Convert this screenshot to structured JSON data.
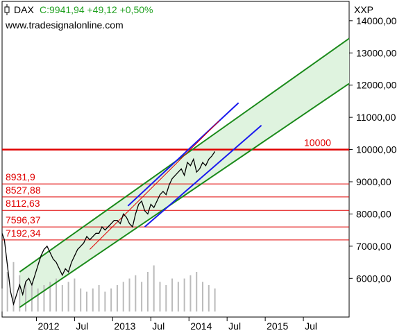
{
  "header": {
    "symbol": "DAX",
    "quote": "C:9941,94 +49,12 +0,50%",
    "website": "www.tradesignalonline.com",
    "exchange_code": "XXP"
  },
  "colors": {
    "price": "#000000",
    "channel_green": "#1a8a1a",
    "channel_fill": "#dff3df",
    "channel_blue": "#1a1aee",
    "level_red": "#e00000",
    "volume": "#bbbbbb",
    "header_green": "#1fa01f"
  },
  "chart_data": {
    "type": "line",
    "title": "DAX",
    "x_tick_labels": [
      "2012",
      "Jul",
      "2013",
      "Jul",
      "2014",
      "Jul",
      "2015",
      "Jul"
    ],
    "x_ticks": [
      2012.0,
      2012.5,
      2013.0,
      2013.5,
      2014.0,
      2014.5,
      2015.0,
      2015.5
    ],
    "xlim": [
      2011.55,
      2016.1
    ],
    "y_tick_labels": [
      "6000,00",
      "7000,00",
      "8000,00",
      "9000,00",
      "10000,00",
      "11000,00",
      "12000,00",
      "13000,00",
      "14000,00"
    ],
    "y_ticks": [
      6000,
      7000,
      8000,
      9000,
      10000,
      11000,
      12000,
      13000,
      14000
    ],
    "ylim": [
      4800,
      14600
    ],
    "grid": false,
    "series": [
      {
        "type": "line",
        "x": [
          2011.55,
          2011.58,
          2011.62,
          2011.66,
          2011.7,
          2011.74,
          2011.78,
          2011.82,
          2011.86,
          2011.9,
          2011.94,
          2011.98,
          2012.02,
          2012.06,
          2012.1,
          2012.14,
          2012.18,
          2012.22,
          2012.26,
          2012.3,
          2012.34,
          2012.38,
          2012.42,
          2012.46,
          2012.5,
          2012.54,
          2012.58,
          2012.62,
          2012.66,
          2012.7,
          2012.74,
          2012.78,
          2012.82,
          2012.86,
          2012.9,
          2012.94,
          2012.98,
          2013.02,
          2013.06,
          2013.1,
          2013.14,
          2013.18,
          2013.22,
          2013.26,
          2013.3,
          2013.34,
          2013.38,
          2013.42,
          2013.46,
          2013.5,
          2013.54,
          2013.58,
          2013.62,
          2013.66,
          2013.7,
          2013.74,
          2013.78,
          2013.82,
          2013.86,
          2013.9,
          2013.94,
          2013.98,
          2014.02,
          2014.06,
          2014.1,
          2014.14,
          2014.18,
          2014.22,
          2014.26,
          2014.3,
          2014.34
        ],
        "y": [
          7400,
          7200,
          6400,
          5600,
          5200,
          5500,
          5800,
          5500,
          5900,
          6000,
          5800,
          6100,
          6400,
          6700,
          6900,
          7000,
          6800,
          6600,
          6500,
          6300,
          6100,
          6300,
          6200,
          6500,
          6700,
          6900,
          7000,
          7100,
          7300,
          7200,
          7300,
          7400,
          7400,
          7600,
          7500,
          7600,
          7700,
          7800,
          7800,
          7700,
          8000,
          7900,
          7700,
          7600,
          8000,
          8300,
          8400,
          8100,
          8000,
          8300,
          8200,
          8400,
          8600,
          8700,
          8600,
          8900,
          9100,
          9200,
          9300,
          9400,
          9200,
          9600,
          9500,
          9700,
          9300,
          9400,
          9600,
          9500,
          9700,
          9800,
          9940
        ]
      },
      {
        "type": "bar",
        "x": [
          2011.55,
          2011.62,
          2011.7,
          2011.78,
          2011.86,
          2011.94,
          2012.02,
          2012.1,
          2012.18,
          2012.26,
          2012.34,
          2012.42,
          2012.5,
          2012.58,
          2012.66,
          2012.74,
          2012.82,
          2012.9,
          2012.98,
          2013.06,
          2013.14,
          2013.22,
          2013.3,
          2013.38,
          2013.46,
          2013.54,
          2013.62,
          2013.7,
          2013.78,
          2013.86,
          2013.94,
          2014.02,
          2014.1,
          2014.18,
          2014.26,
          2014.34
        ],
        "y": [
          0.35,
          0.6,
          0.75,
          0.55,
          0.45,
          0.4,
          0.35,
          0.4,
          0.45,
          0.5,
          0.4,
          0.45,
          0.5,
          0.35,
          0.3,
          0.35,
          0.4,
          0.3,
          0.35,
          0.4,
          0.45,
          0.5,
          0.55,
          0.45,
          0.6,
          0.7,
          0.45,
          0.4,
          0.5,
          0.45,
          0.5,
          0.55,
          0.6,
          0.45,
          0.4,
          0.35
        ]
      }
    ],
    "channels": [
      {
        "color": "green",
        "from": [
          2011.78,
          6200
        ],
        "to": [
          2016.1,
          13450
        ]
      },
      {
        "color": "green",
        "from": [
          2011.78,
          5100
        ],
        "to": [
          2016.1,
          12050
        ]
      },
      {
        "color": "blue",
        "from": [
          2013.2,
          8250
        ],
        "to": [
          2014.65,
          11450
        ]
      },
      {
        "color": "blue",
        "from": [
          2013.42,
          7600
        ],
        "to": [
          2014.95,
          10750
        ]
      },
      {
        "color": "red",
        "from": [
          2012.7,
          6900
        ],
        "to": [
          2014.4,
          10900
        ]
      }
    ],
    "levels": [
      {
        "label": "10000",
        "value": 10000
      },
      {
        "label": "8931,9",
        "value": 8931.9
      },
      {
        "label": "8527,88",
        "value": 8527.88
      },
      {
        "label": "8112,63",
        "value": 8112.63
      },
      {
        "label": "7596,37",
        "value": 7596.37
      },
      {
        "label": "7192,34",
        "value": 7192.34
      }
    ]
  }
}
